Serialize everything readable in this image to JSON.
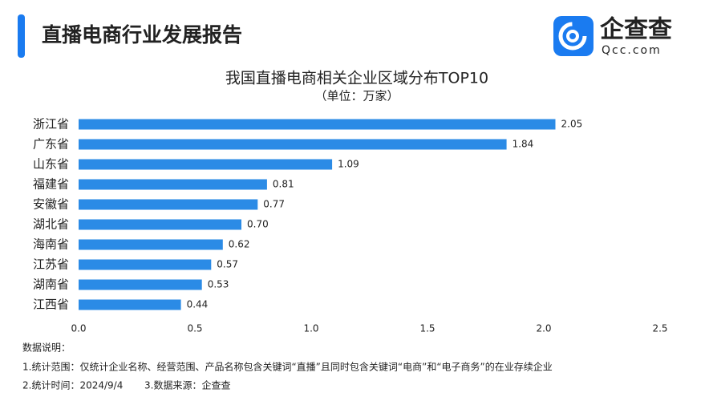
{
  "header": {
    "title": "直播电商行业发展报告",
    "logo_name": "企查查",
    "logo_domain": "Qcc.com"
  },
  "chart_data": {
    "type": "bar",
    "orientation": "horizontal",
    "title": "我国直播电商相关企业区域分布TOP10",
    "subtitle": "（单位：万家）",
    "categories": [
      "浙江省",
      "广东省",
      "山东省",
      "福建省",
      "安徽省",
      "湖北省",
      "海南省",
      "江苏省",
      "湖南省",
      "江西省"
    ],
    "values": [
      2.05,
      1.84,
      1.09,
      0.81,
      0.77,
      0.7,
      0.62,
      0.57,
      0.53,
      0.44
    ],
    "value_labels": [
      "2.05",
      "1.84",
      "1.09",
      "0.81",
      "0.77",
      "0.70",
      "0.62",
      "0.57",
      "0.53",
      "0.44"
    ],
    "color": "#2b8be6",
    "xlim": [
      0,
      2.5
    ],
    "xticks": [
      {
        "value": 0,
        "label": "0.0"
      },
      0.5,
      {
        "value": 1,
        "label": "1.0"
      },
      1.5,
      {
        "value": 2,
        "label": "2.0"
      },
      2.5
    ],
    "grid": false
  },
  "notes": [
    "数据说明：",
    "1.统计范围：仅统计企业名称、经营范围、产品名称包含关键词“直播”且同时包含关键词“电商”和“电子商务”的在业存续企业",
    "2.统计时间：2024/9/4",
    "3.数据来源：企查查"
  ]
}
